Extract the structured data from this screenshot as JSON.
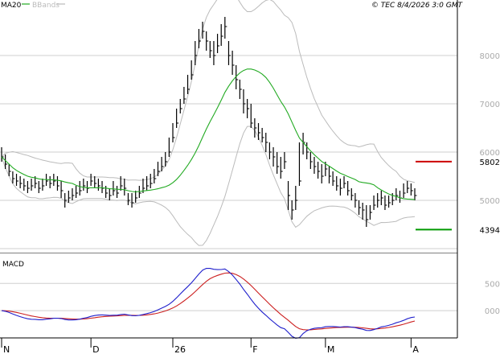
{
  "header": {
    "legend_ma": "MA20",
    "legend_bb": "BBands",
    "copyright": "© TEC 8/4/2026 3:0 GMT"
  },
  "colors": {
    "price": "#000000",
    "ma20": "#22aa22",
    "bbands": "#bbbbbb",
    "resistance": "#cc0000",
    "support": "#009900",
    "macd": "#1f1fcc",
    "signal": "#cc1f1f",
    "grid": "#cfcfcf",
    "frame": "#000000"
  },
  "chart_data": [
    {
      "type": "line",
      "panel": "price",
      "title": "",
      "y_ticks": [
        5000,
        6000,
        7000,
        8000
      ],
      "y_labels": [
        "5000",
        "6000",
        "7000",
        "8000"
      ],
      "ylim": [
        3900,
        9150
      ],
      "x_ticks": [
        {
          "index": 0,
          "label": "N"
        },
        {
          "index": 24,
          "label": "D"
        },
        {
          "index": 46,
          "label": "26"
        },
        {
          "index": 67,
          "label": "F"
        },
        {
          "index": 87,
          "label": "M"
        },
        {
          "index": 110,
          "label": "A"
        }
      ],
      "levels": [
        {
          "name": "resistance",
          "value": 5802,
          "label": "5802"
        },
        {
          "name": "support",
          "value": 4394,
          "label": "4394"
        }
      ],
      "series": [
        {
          "name": "MA20",
          "type": "line"
        },
        {
          "name": "BBands",
          "type": "band"
        }
      ],
      "x": [
        0,
        1,
        2,
        3,
        4,
        5,
        6,
        7,
        8,
        9,
        10,
        11,
        12,
        13,
        14,
        15,
        16,
        17,
        18,
        19,
        20,
        21,
        22,
        23,
        24,
        25,
        26,
        27,
        28,
        29,
        30,
        31,
        32,
        33,
        34,
        35,
        36,
        37,
        38,
        39,
        40,
        41,
        42,
        43,
        44,
        45,
        46,
        47,
        48,
        49,
        50,
        51,
        52,
        53,
        54,
        55,
        56,
        57,
        58,
        59,
        60,
        61,
        62,
        63,
        64,
        65,
        66,
        67,
        68,
        69,
        70,
        71,
        72,
        73,
        74,
        75,
        76,
        77,
        78,
        79,
        80,
        81,
        82,
        83,
        84,
        85,
        86,
        87,
        88,
        89,
        90,
        91,
        92,
        93,
        94,
        95,
        96,
        97,
        98,
        99,
        100,
        101,
        102,
        103,
        104,
        105,
        106,
        107,
        108,
        109,
        110,
        111
      ],
      "close": [
        5900,
        5750,
        5600,
        5450,
        5400,
        5350,
        5300,
        5250,
        5300,
        5350,
        5250,
        5300,
        5400,
        5350,
        5400,
        5300,
        5200,
        5000,
        5050,
        5100,
        5150,
        5200,
        5300,
        5250,
        5400,
        5350,
        5300,
        5250,
        5150,
        5100,
        5200,
        5150,
        5300,
        5250,
        5000,
        4950,
        5050,
        5150,
        5250,
        5300,
        5350,
        5450,
        5600,
        5700,
        5800,
        6000,
        6300,
        6600,
        6900,
        7100,
        7300,
        7600,
        8000,
        8300,
        8500,
        8300,
        8100,
        8000,
        8200,
        8400,
        8600,
        8000,
        7800,
        7500,
        7300,
        7000,
        6900,
        6600,
        6500,
        6400,
        6300,
        6200,
        6000,
        5900,
        5700,
        5600,
        5800,
        5100,
        4800,
        5000,
        5400,
        6200,
        6000,
        5800,
        5700,
        5600,
        5500,
        5650,
        5500,
        5400,
        5300,
        5250,
        5350,
        5200,
        5100,
        5000,
        4850,
        4800,
        4600,
        4750,
        4900,
        5000,
        5050,
        4900,
        4950,
        5000,
        5100,
        5050,
        5150,
        5250,
        5200,
        5100
      ],
      "high": [
        6100,
        5950,
        5750,
        5600,
        5550,
        5500,
        5450,
        5400,
        5450,
        5500,
        5400,
        5450,
        5550,
        5500,
        5550,
        5500,
        5400,
        5150,
        5200,
        5250,
        5300,
        5400,
        5450,
        5400,
        5550,
        5500,
        5450,
        5400,
        5300,
        5250,
        5400,
        5300,
        5500,
        5450,
        5150,
        5150,
        5200,
        5300,
        5450,
        5500,
        5550,
        5650,
        5800,
        5900,
        6000,
        6300,
        6600,
        6900,
        7100,
        7350,
        7600,
        7900,
        8300,
        8550,
        8700,
        8500,
        8300,
        8300,
        8450,
        8650,
        8800,
        8300,
        8100,
        7800,
        7500,
        7300,
        7100,
        7000,
        6700,
        6600,
        6500,
        6400,
        6200,
        6100,
        6000,
        5900,
        6000,
        5400,
        5000,
        5300,
        6200,
        6400,
        6200,
        6000,
        5900,
        5800,
        5750,
        5800,
        5700,
        5600,
        5500,
        5450,
        5500,
        5400,
        5250,
        5150,
        5000,
        4950,
        4900,
        4900,
        5100,
        5150,
        5200,
        5100,
        5100,
        5150,
        5250,
        5200,
        5350,
        5400,
        5350,
        5250
      ],
      "low": [
        5800,
        5650,
        5500,
        5350,
        5300,
        5250,
        5200,
        5150,
        5200,
        5250,
        5150,
        5200,
        5300,
        5250,
        5300,
        5200,
        5050,
        4850,
        4950,
        5000,
        5050,
        5100,
        5200,
        5150,
        5300,
        5250,
        5200,
        5150,
        5050,
        5000,
        5100,
        5050,
        5200,
        5100,
        4900,
        4850,
        4950,
        5050,
        5150,
        5200,
        5250,
        5350,
        5500,
        5600,
        5700,
        5900,
        6200,
        6500,
        6800,
        7000,
        7200,
        7500,
        7800,
        8150,
        8350,
        8100,
        7950,
        7800,
        8050,
        8200,
        8350,
        7800,
        7600,
        7300,
        7100,
        6800,
        6700,
        6500,
        6300,
        6250,
        6200,
        6000,
        5850,
        5700,
        5550,
        5450,
        5650,
        4800,
        4600,
        4800,
        5300,
        5950,
        5850,
        5650,
        5550,
        5450,
        5350,
        5500,
        5350,
        5300,
        5200,
        5100,
        5250,
        5100,
        5000,
        4850,
        4700,
        4600,
        4450,
        4600,
        4800,
        4850,
        4900,
        4800,
        4850,
        4900,
        5000,
        4950,
        5050,
        5150,
        5100,
        5000
      ]
    },
    {
      "type": "line",
      "panel": "macd",
      "title": "MACD",
      "y_ticks": [
        0,
        500
      ],
      "y_labels": [
        "000",
        "500"
      ],
      "ylim": [
        -500,
        1050
      ],
      "series": [
        {
          "name": "MACD",
          "type": "line"
        },
        {
          "name": "Signal",
          "type": "line"
        }
      ]
    }
  ]
}
